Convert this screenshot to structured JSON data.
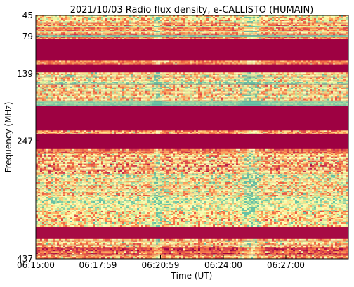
{
  "chart_data": {
    "type": "heatmap",
    "title": "2021/10/03  Radio flux density, e-CALLISTO (HUMAIN)",
    "xlabel": "Time (UT)",
    "ylabel": "Frequency (MHz)",
    "xticks": [
      "06:15:00",
      "06:17:59",
      "06:20:59",
      "06:24:00",
      "06:27:00"
    ],
    "yticks": [
      "45",
      "79",
      "139",
      "247",
      "437"
    ],
    "colormap": [
      "#9e0142",
      "#d53e4f",
      "#f46d43",
      "#fdae61",
      "#fee08b",
      "#ffffbf",
      "#e6f598",
      "#abdda4",
      "#66c2a5"
    ],
    "bands": [
      {
        "f_top": 45,
        "f_bottom": 56,
        "kind": "noisy",
        "level": 0.55,
        "var": 0.35
      },
      {
        "f_top": 56,
        "f_bottom": 62,
        "kind": "noisy",
        "level": 0.35,
        "var": 0.2
      },
      {
        "f_top": 62,
        "f_bottom": 64,
        "kind": "line",
        "level": 0.85,
        "var": 0.1
      },
      {
        "f_top": 64,
        "f_bottom": 70,
        "kind": "noisy",
        "level": 0.3,
        "var": 0.15
      },
      {
        "f_top": 70,
        "f_bottom": 72,
        "kind": "line",
        "level": 0.7,
        "var": 0.1
      },
      {
        "f_top": 72,
        "f_bottom": 77,
        "kind": "noisy",
        "level": 0.35,
        "var": 0.2
      },
      {
        "f_top": 77,
        "f_bottom": 79,
        "kind": "line",
        "level": 0.9,
        "var": 0.05
      },
      {
        "f_top": 79,
        "f_bottom": 83,
        "kind": "noisy",
        "level": 0.3,
        "var": 0.15
      },
      {
        "f_top": 83,
        "f_bottom": 118,
        "kind": "flat",
        "level": 0.0,
        "var": 0.0
      },
      {
        "f_top": 118,
        "f_bottom": 124,
        "kind": "noisy",
        "level": 0.3,
        "var": 0.15
      },
      {
        "f_top": 124,
        "f_bottom": 137,
        "kind": "flat",
        "level": 0.0,
        "var": 0.0
      },
      {
        "f_top": 137,
        "f_bottom": 141,
        "kind": "noisy",
        "level": 0.55,
        "var": 0.25
      },
      {
        "f_top": 141,
        "f_bottom": 152,
        "kind": "noisy",
        "level": 0.6,
        "var": 0.35
      },
      {
        "f_top": 152,
        "f_bottom": 157,
        "kind": "line",
        "level": 0.82,
        "var": 0.2
      },
      {
        "f_top": 157,
        "f_bottom": 168,
        "kind": "noisy",
        "level": 0.55,
        "var": 0.35
      },
      {
        "f_top": 168,
        "f_bottom": 182,
        "kind": "noisy",
        "level": 0.5,
        "var": 0.35
      },
      {
        "f_top": 182,
        "f_bottom": 190,
        "kind": "line",
        "level": 0.9,
        "var": 0.05
      },
      {
        "f_top": 190,
        "f_bottom": 230,
        "kind": "flat",
        "level": 0.0,
        "var": 0.0
      },
      {
        "f_top": 230,
        "f_bottom": 236,
        "kind": "noisy",
        "level": 0.35,
        "var": 0.2
      },
      {
        "f_top": 236,
        "f_bottom": 260,
        "kind": "flat",
        "level": 0.0,
        "var": 0.0
      },
      {
        "f_top": 260,
        "f_bottom": 268,
        "kind": "noisy",
        "level": 0.3,
        "var": 0.15
      },
      {
        "f_top": 268,
        "f_bottom": 300,
        "kind": "noisy",
        "level": 0.45,
        "var": 0.35
      },
      {
        "f_top": 300,
        "f_bottom": 335,
        "kind": "noisy",
        "level": 0.6,
        "var": 0.35
      },
      {
        "f_top": 335,
        "f_bottom": 360,
        "kind": "noisy",
        "level": 0.72,
        "var": 0.3
      },
      {
        "f_top": 360,
        "f_bottom": 385,
        "kind": "noisy",
        "level": 0.55,
        "var": 0.35
      },
      {
        "f_top": 385,
        "f_bottom": 405,
        "kind": "flat",
        "level": 0.02,
        "var": 0.03
      },
      {
        "f_top": 405,
        "f_bottom": 418,
        "kind": "noisy",
        "level": 0.45,
        "var": 0.3
      },
      {
        "f_top": 418,
        "f_bottom": 430,
        "kind": "noisy",
        "level": 0.2,
        "var": 0.15
      },
      {
        "f_top": 430,
        "f_bottom": 437,
        "kind": "noisy",
        "level": 0.35,
        "var": 0.2
      }
    ],
    "bursts": [
      {
        "t": "06:20:50",
        "width_s": 20,
        "gain": 0.25
      },
      {
        "t": "06:25:20",
        "width_s": 40,
        "gain": 0.3
      }
    ]
  }
}
